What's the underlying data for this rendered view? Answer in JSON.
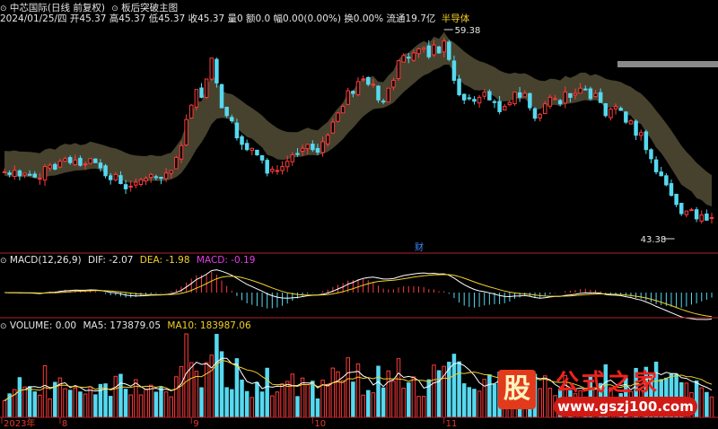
{
  "header": {
    "security": "中芯国际(日线 前复权)",
    "template": "板后突破主图",
    "info": "2024/01/25/四 开45.37 高45.37 低45.37 收45.37 量0 额0.0 幅0.00(0.00%) 换0.00% 流通19.7亿",
    "sector": "半导体"
  },
  "annotations": {
    "high_label": "59.38",
    "low_label": "43.38",
    "cai_label": "财"
  },
  "macd_header": {
    "name": "MACD(12,26,9)",
    "dif": "DIF: -2.07",
    "dea": "DEA: -1.98",
    "macd": "MACD: -0.19"
  },
  "volume_header": {
    "name": "VOLUME: 0.00",
    "ma5": "MA5: 173879.05",
    "ma10": "MA10: 183987.06"
  },
  "x_axis_labels": [
    "2023年",
    "8",
    "9",
    "10",
    "11"
  ],
  "watermark": {
    "seal_char": "股",
    "title": "公式之家",
    "url": "www.gszj100.com"
  },
  "colors": {
    "up": "#ff3b3b",
    "down": "#56d9f0",
    "band": "#4a4630",
    "dif": "#ffffff",
    "dea": "#f2d028",
    "background": "#000000"
  },
  "chart_data": {
    "type": "candlestick",
    "price_range": [
      43.38,
      59.38
    ],
    "first_close": 48.5,
    "closes": [
      48.5,
      48.3,
      48.6,
      48.2,
      48.4,
      48.3,
      48.1,
      48.0,
      48.9,
      49.0,
      48.7,
      49.3,
      49.5,
      49.2,
      49.4,
      49.0,
      49.1,
      49.5,
      49.2,
      48.8,
      48.2,
      47.9,
      48.3,
      47.6,
      47.2,
      47.4,
      47.7,
      47.9,
      48.0,
      48.3,
      48.1,
      48.0,
      48.4,
      48.6,
      49.6,
      50.5,
      52.5,
      53.6,
      54.8,
      54.2,
      55.6,
      57.2,
      55.3,
      53.4,
      52.8,
      52.4,
      51.1,
      50.6,
      50.2,
      50.3,
      49.8,
      49.4,
      48.4,
      48.7,
      48.6,
      48.9,
      49.3,
      49.8,
      49.9,
      50.3,
      50.6,
      50.2,
      50.0,
      50.8,
      51.3,
      52.3,
      53.0,
      53.5,
      54.7,
      54.5,
      55.4,
      55.6,
      55.2,
      55.2,
      54.0,
      53.9,
      54.9,
      55.5,
      57.0,
      57.4,
      57.2,
      57.6,
      57.9,
      58.0,
      57.3,
      58.2,
      57.6,
      58.5,
      57.1,
      55.5,
      54.4,
      54.0,
      54.1,
      53.9,
      54.2,
      54.6,
      54.0,
      53.8,
      53.1,
      53.5,
      53.8,
      54.6,
      54.2,
      54.5,
      53.4,
      52.6,
      52.9,
      53.7,
      54.2,
      54.1,
      53.7,
      54.6,
      54.2,
      54.5,
      54.9,
      54.8,
      54.1,
      54.5,
      53.8,
      52.8,
      53.3,
      53.5,
      53.2,
      52.3,
      52.4,
      51.3,
      51.5,
      50.2,
      49.5,
      48.5,
      48.2,
      47.5,
      46.7,
      46.0,
      45.3,
      45.5,
      45.6,
      44.9,
      45.2,
      44.8,
      45.0
    ],
    "volume_ma5": 173879.05,
    "volume_ma10": 183987.06,
    "macd": {
      "dif": -2.07,
      "dea": -1.98,
      "macd": -0.19
    }
  }
}
